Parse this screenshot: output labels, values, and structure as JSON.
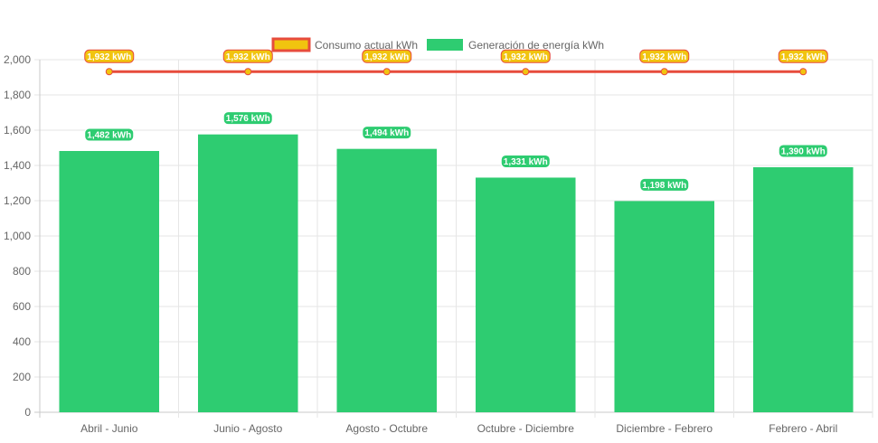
{
  "chart_data": {
    "type": "bar",
    "categories": [
      "Abril - Junio",
      "Junio - Agosto",
      "Agosto - Octubre",
      "Octubre - Diciembre",
      "Diciembre - Febrero",
      "Febrero - Abril"
    ],
    "series": [
      {
        "name": "Consumo actual kWh",
        "type": "line",
        "values": [
          1932,
          1932,
          1932,
          1932,
          1932,
          1932
        ],
        "labels": [
          "1,932 kWh",
          "1,932 kWh",
          "1,932 kWh",
          "1,932 kWh",
          "1,932 kWh",
          "1,932 kWh"
        ],
        "color": "#e74c3c",
        "fill": "#f1c40f"
      },
      {
        "name": "Generación de energía kWh",
        "type": "bar",
        "values": [
          1482,
          1576,
          1494,
          1331,
          1198,
          1390
        ],
        "labels": [
          "1,482 kWh",
          "1,576 kWh",
          "1,494 kWh",
          "1,331 kWh",
          "1,198 kWh",
          "1,390 kWh"
        ],
        "color": "#2ecc71"
      }
    ],
    "ylim": [
      0,
      2000
    ],
    "yticks": [
      0,
      200,
      400,
      600,
      800,
      1000,
      1200,
      1400,
      1600,
      1800,
      2000
    ],
    "ytick_labels": [
      "0",
      "200",
      "400",
      "600",
      "800",
      "1,000",
      "1,200",
      "1,400",
      "1,600",
      "1,800",
      "2,000"
    ],
    "grid": true,
    "legend_position": "top"
  }
}
